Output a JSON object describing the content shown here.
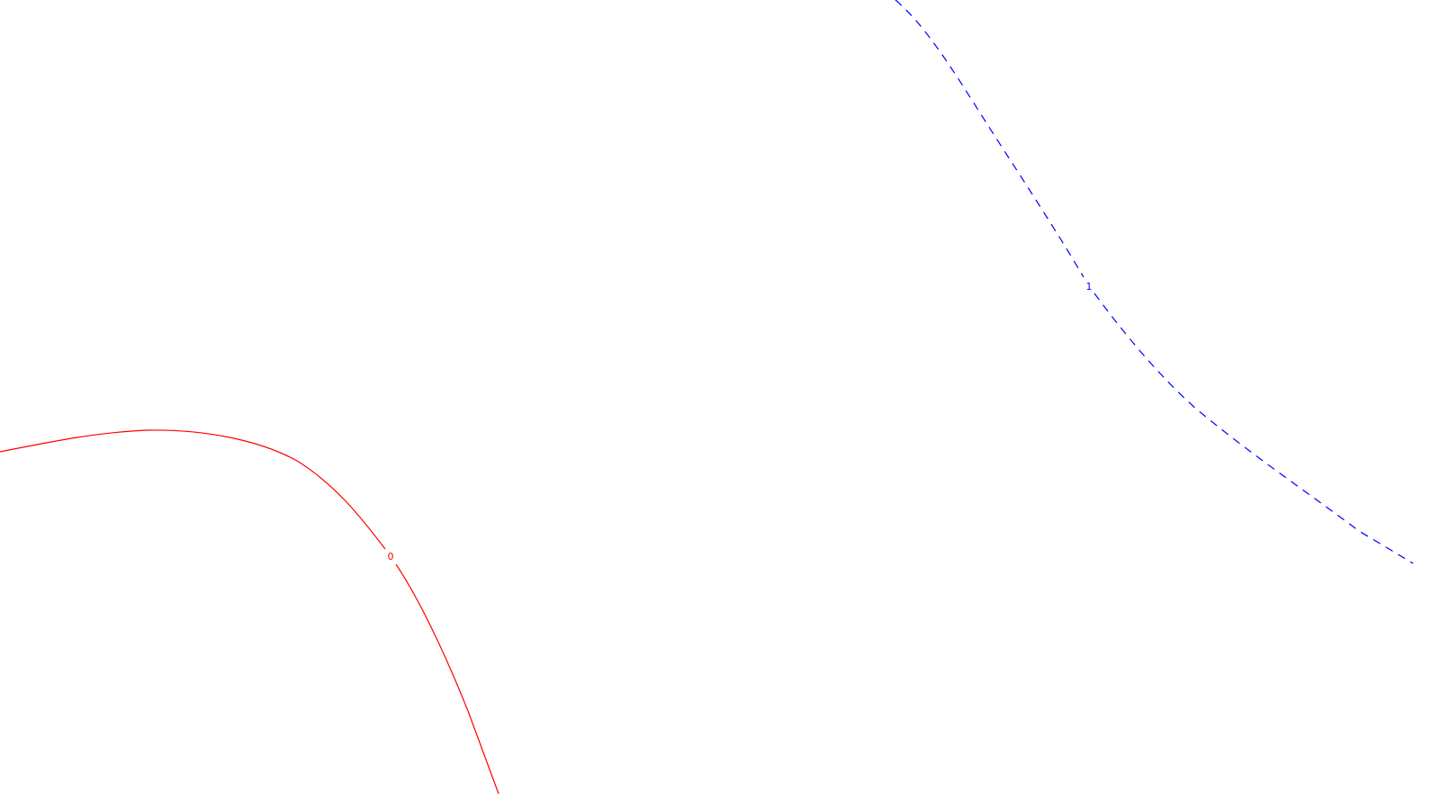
{
  "map": {
    "background": "#ffffff",
    "contours": [
      {
        "label": "0",
        "color": "#ff0000",
        "style": "solid"
      },
      {
        "label": "1",
        "color": "#0000ff",
        "style": "dashed"
      }
    ]
  }
}
